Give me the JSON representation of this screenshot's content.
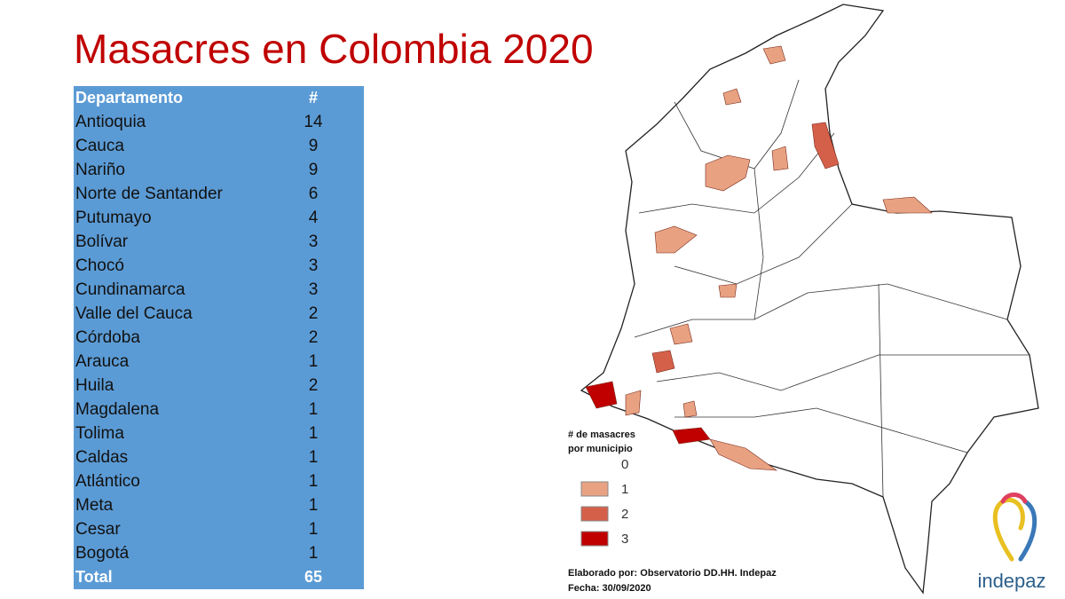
{
  "header": {
    "title": "Masacres en Colombia 2020"
  },
  "table": {
    "columns": [
      "Departamento",
      "#"
    ],
    "rows": [
      [
        "Antioquia",
        14
      ],
      [
        "Cauca",
        9
      ],
      [
        "Nariño",
        9
      ],
      [
        "Norte de Santander",
        6
      ],
      [
        "Putumayo",
        4
      ],
      [
        "Bolívar",
        3
      ],
      [
        "Chocó",
        3
      ],
      [
        "Cundinamarca",
        3
      ],
      [
        "Valle del Cauca",
        2
      ],
      [
        "Córdoba",
        2
      ],
      [
        "Arauca",
        1
      ],
      [
        "Huila",
        2
      ],
      [
        "Magdalena",
        1
      ],
      [
        "Tolima",
        1
      ],
      [
        "Caldas",
        1
      ],
      [
        "Atlántico",
        1
      ],
      [
        "Meta",
        1
      ],
      [
        "Cesar",
        1
      ],
      [
        "Bogotá",
        1
      ]
    ],
    "total": [
      "Total",
      65
    ]
  },
  "map_legend": {
    "title": "# de masacres por municipio",
    "items": [
      {
        "label": "0",
        "color": "#ffffff"
      },
      {
        "label": "1",
        "color": "#e8a282"
      },
      {
        "label": "2",
        "color": "#d5604a"
      },
      {
        "label": "3",
        "color": "#c00000"
      }
    ]
  },
  "credits": {
    "author": "Elaborado por: Observatorio DD.HH.  Indepaz",
    "date": "Fecha: 30/09/2020"
  },
  "logo": {
    "text": "indepaz"
  }
}
